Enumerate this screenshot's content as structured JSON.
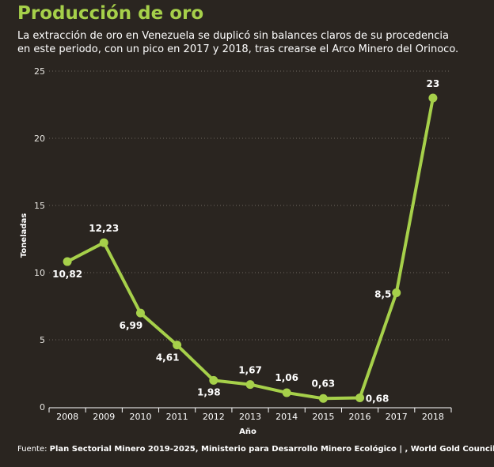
{
  "header": {
    "title": "Producción de oro",
    "subtitle_line1": "La extracción de oro en Venezuela se duplicó sin balances claros de su procedencia",
    "subtitle_line2": "en este periodo, con un pico en 2017 y 2018, tras crearse el Arco Minero del Orinoco."
  },
  "source": {
    "label": "Fuente:",
    "text": "Plan Sectorial Minero 2019-2025, Ministerio para Desarrollo Minero Ecológico | , World Gold Council"
  },
  "colors": {
    "background": "#2a2520",
    "accent": "#a6d04a",
    "axis": "#ffffff",
    "grid": "#6d6860"
  },
  "chart_data": {
    "type": "line",
    "x": [
      "2008",
      "2009",
      "2010",
      "2011",
      "2012",
      "2013",
      "2014",
      "2015",
      "2016",
      "2017",
      "2018"
    ],
    "series": [
      {
        "values": [
          10.82,
          12.23,
          6.99,
          4.61,
          1.98,
          1.67,
          1.06,
          0.63,
          0.68,
          8.5,
          23
        ],
        "labels": [
          "10,82",
          "12,23",
          "6,99",
          "4,61",
          "1,98",
          "1,67",
          "1,06",
          "0,63",
          "0,68",
          "8,5",
          "23"
        ]
      }
    ],
    "xlabel": "Año",
    "ylabel": "Toneladas",
    "ylim": [
      0,
      25
    ],
    "yticks": [
      "0",
      "5",
      "10",
      "15",
      "20",
      "25"
    ],
    "grid": true
  }
}
